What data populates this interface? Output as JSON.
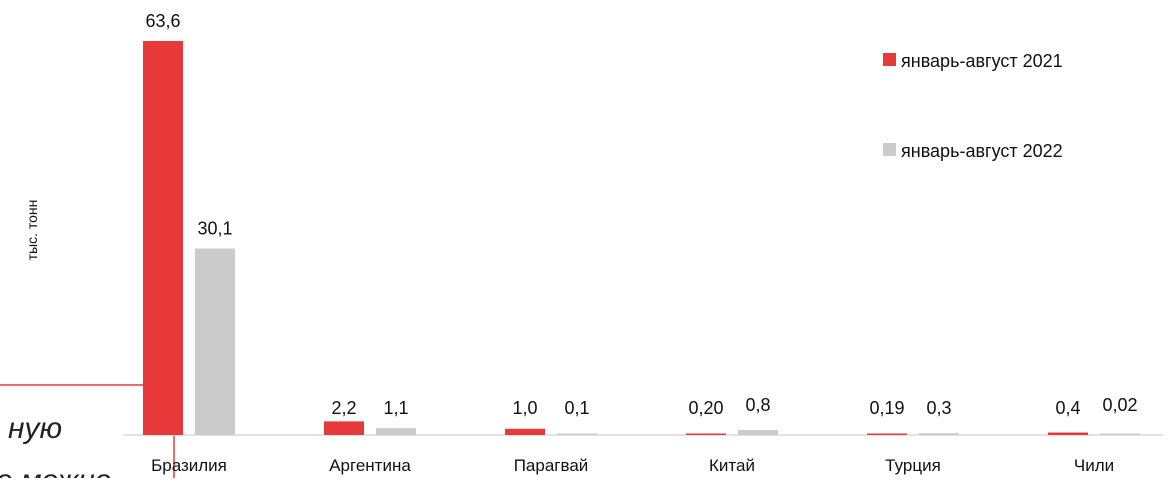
{
  "chart_data": {
    "type": "bar",
    "ylabel": "тыс. тонн",
    "categories": [
      "Бразилия",
      "Аргентина",
      "Парагвай",
      "Китай",
      "Турция",
      "Чили"
    ],
    "series": [
      {
        "name": "январь-август 2021",
        "color": "#e8393a",
        "values": [
          63.6,
          2.2,
          1.0,
          0.2,
          0.19,
          0.4
        ],
        "labels": [
          "63,6",
          "2,2",
          "1,0",
          "0,20",
          "0,19",
          "0,4"
        ]
      },
      {
        "name": "январь-август 2022",
        "color": "#cbcbcc",
        "values": [
          30.1,
          1.1,
          0.1,
          0.8,
          0.3,
          0.02
        ],
        "labels": [
          "30,1",
          "1,1",
          "0,1",
          "0,8",
          "0,3",
          "0,02"
        ]
      }
    ],
    "ylim": [
      0,
      63.6
    ],
    "grid": false,
    "legend_position": "top-right"
  },
  "background_text": {
    "line1": "ную",
    "line2": "о можно"
  },
  "colors": {
    "accent_line": "#e8393a",
    "axis": "#d9d9d9"
  }
}
